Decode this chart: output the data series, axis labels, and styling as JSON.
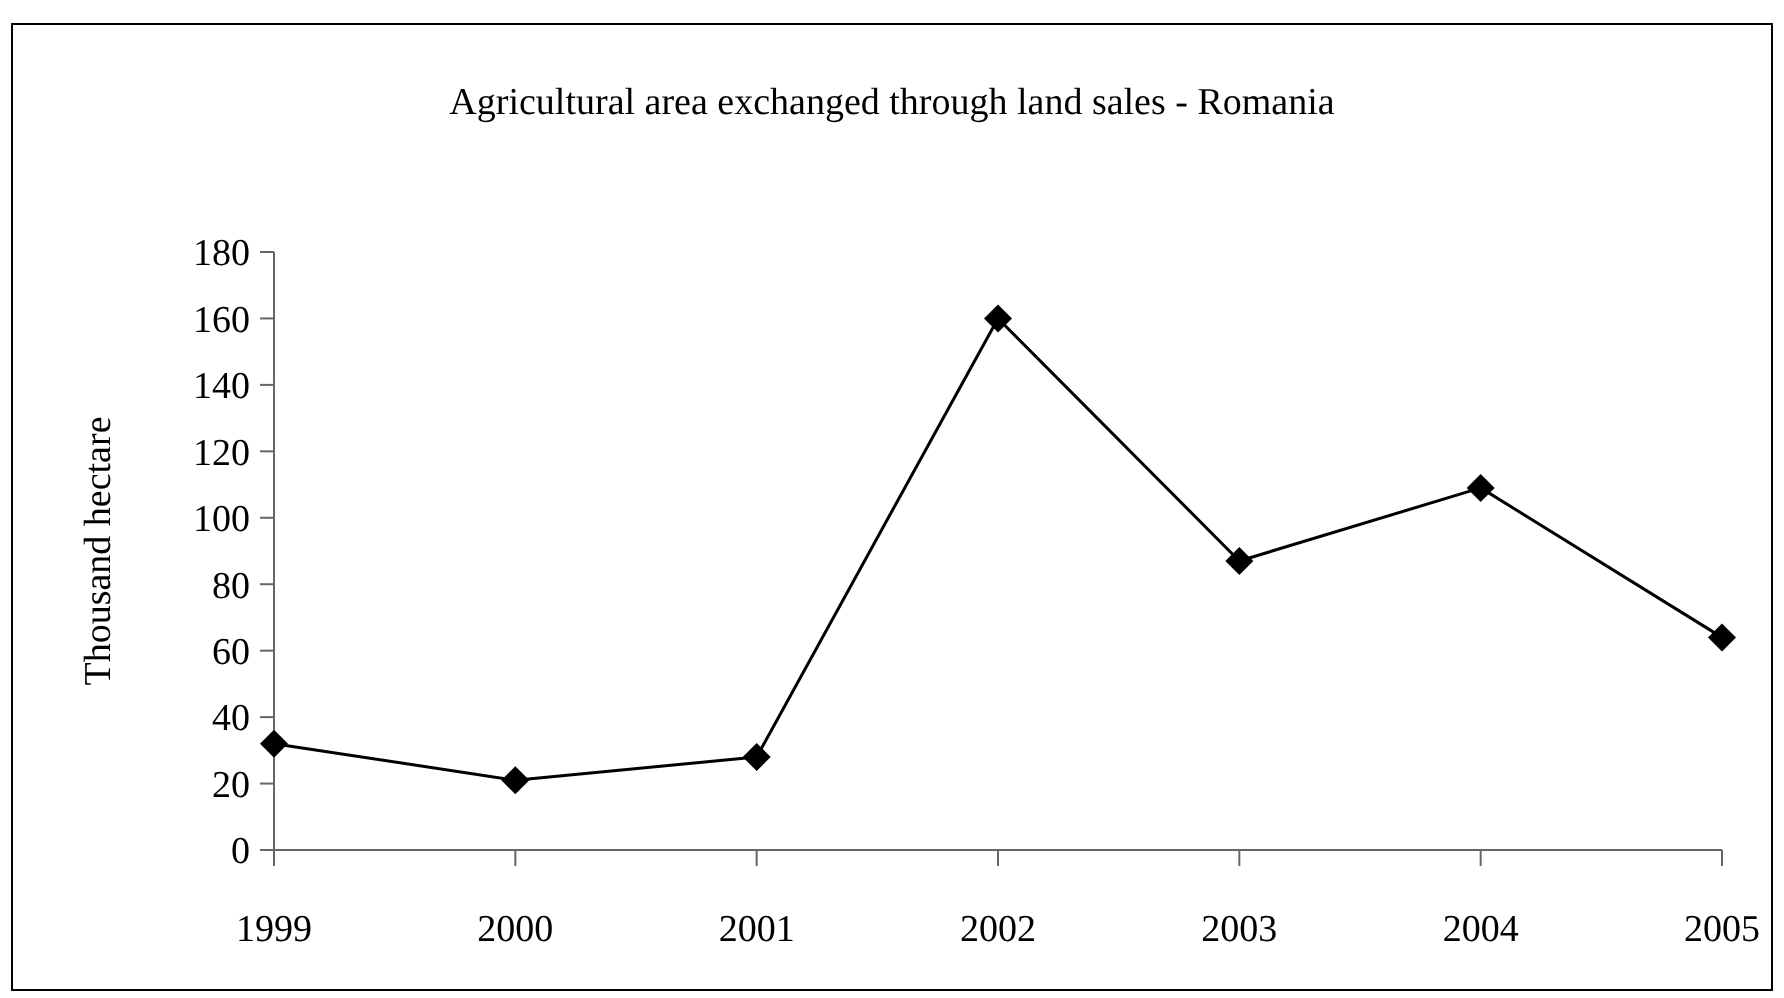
{
  "chart_data": {
    "type": "line",
    "title": "Agricultural area exchanged through land sales - Romania",
    "ylabel": "Thousand hectare",
    "categories": [
      "1999",
      "2000",
      "2001",
      "2002",
      "2003",
      "2004",
      "2005"
    ],
    "series": [
      {
        "color": "#000000",
        "values": [
          32,
          21,
          28,
          160,
          87,
          109,
          64
        ]
      }
    ],
    "ylim": [
      0,
      180
    ],
    "yticks": [
      0,
      20,
      40,
      60,
      80,
      100,
      120,
      140,
      160,
      180
    ],
    "grid": false,
    "marker": "diamond",
    "line_style": "solid"
  }
}
